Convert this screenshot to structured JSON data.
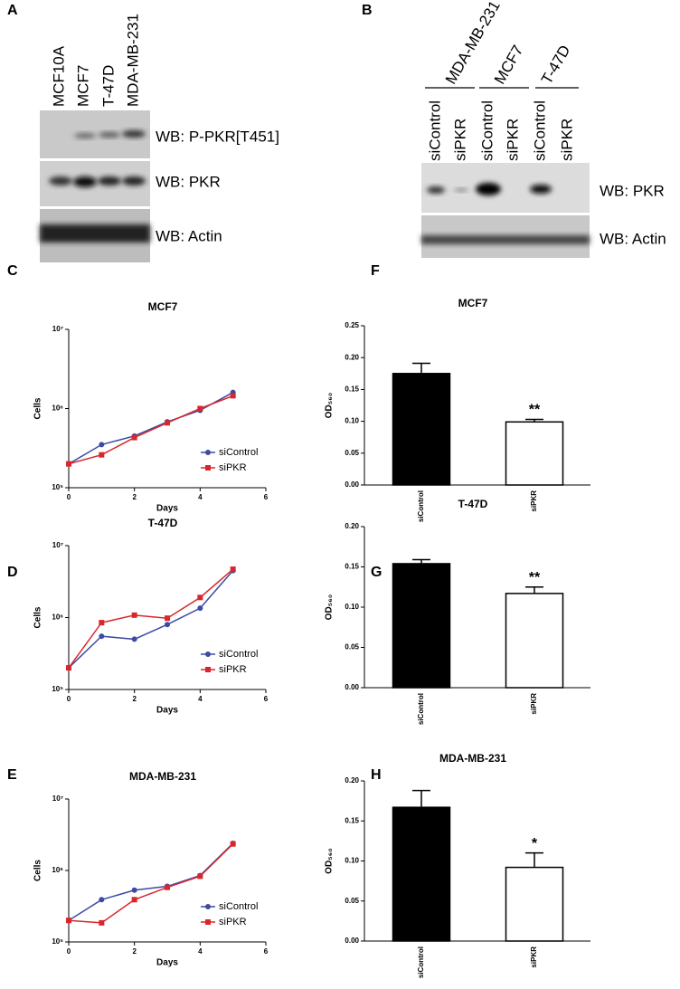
{
  "blots": [
    {
      "letter": "A",
      "lanes": [
        "MCF10A",
        "MCF7",
        "T-47D",
        "MDA-MB-231"
      ],
      "rows": [
        "WB: P-PKR[T451]",
        "WB: PKR",
        "WB: Actin"
      ]
    },
    {
      "letter": "B",
      "groups": [
        "MDA-MB-231",
        "MCF7",
        "T-47D"
      ],
      "lanes": [
        "siControl",
        "siPKR",
        "siControl",
        "siPKR",
        "siControl",
        "siPKR"
      ],
      "rows": [
        "WB: PKR",
        "WB: Actin"
      ]
    }
  ],
  "chart_data": [
    {
      "letter": "C",
      "type": "line",
      "title": "MCF7",
      "xlabel": "Days",
      "ylabel": "Cells",
      "x": [
        0,
        1,
        2,
        3,
        4,
        5
      ],
      "xlim": [
        0,
        6
      ],
      "xticks": [
        0,
        2,
        4,
        6
      ],
      "log_y": true,
      "ylim": [
        100000,
        10000000
      ],
      "yticks": [
        {
          "value": 100000,
          "label": "10⁵"
        },
        {
          "value": 1000000,
          "label": "10⁶"
        },
        {
          "value": 10000000,
          "label": "10⁷"
        }
      ],
      "legend": "lower right",
      "series": [
        {
          "name": "siControl",
          "color": "#3b4ba3",
          "values": [
            200000,
            350000,
            450000,
            680000,
            950000,
            1600000
          ]
        },
        {
          "name": "siPKR",
          "color": "#d9262b",
          "values": [
            200000,
            260000,
            430000,
            660000,
            1000000,
            1450000
          ]
        }
      ]
    },
    {
      "letter": "D",
      "type": "line",
      "title": "T-47D",
      "xlabel": "Days",
      "ylabel": "Cells",
      "x": [
        0,
        1,
        2,
        3,
        4,
        5
      ],
      "xlim": [
        0,
        6
      ],
      "xticks": [
        0,
        2,
        4,
        6
      ],
      "log_y": true,
      "ylim": [
        100000,
        10000000
      ],
      "yticks": [
        {
          "value": 100000,
          "label": "10⁵"
        },
        {
          "value": 1000000,
          "label": "10⁶"
        },
        {
          "value": 10000000,
          "label": "10⁷"
        }
      ],
      "legend": "lower right",
      "series": [
        {
          "name": "siControl",
          "color": "#3b4ba3",
          "values": [
            200000,
            550000,
            500000,
            800000,
            1350000,
            4500000
          ]
        },
        {
          "name": "siPKR",
          "color": "#d9262b",
          "values": [
            200000,
            850000,
            1080000,
            980000,
            1900000,
            4700000
          ]
        }
      ]
    },
    {
      "letter": "E",
      "type": "line",
      "title": "MDA-MB-231",
      "xlabel": "Days",
      "ylabel": "Cells",
      "x": [
        0,
        1,
        2,
        3,
        4,
        5
      ],
      "xlim": [
        0,
        6
      ],
      "xticks": [
        0,
        2,
        4,
        6
      ],
      "log_y": true,
      "ylim": [
        100000,
        10000000
      ],
      "yticks": [
        {
          "value": 100000,
          "label": "10⁵"
        },
        {
          "value": 1000000,
          "label": "10⁶"
        },
        {
          "value": 10000000,
          "label": "10⁷"
        }
      ],
      "legend": "lower right",
      "series": [
        {
          "name": "siControl",
          "color": "#3b4ba3",
          "values": [
            200000,
            390000,
            530000,
            600000,
            850000,
            2400000
          ]
        },
        {
          "name": "siPKR",
          "color": "#d9262b",
          "values": [
            200000,
            185000,
            390000,
            580000,
            830000,
            2350000
          ]
        }
      ]
    },
    {
      "letter": "F",
      "type": "bar",
      "title": "MCF7",
      "ylabel": "OD₅₆₀",
      "categories": [
        "siControl",
        "siPKR"
      ],
      "values": [
        0.175,
        0.099
      ],
      "errors": [
        0.016,
        0.004
      ],
      "colors": [
        "#000000",
        "#ffffff"
      ],
      "annotations": [
        null,
        "**"
      ],
      "ylim": [
        0,
        0.25
      ],
      "yticks": [
        {
          "value": 0,
          "label": "0.00"
        },
        0.05,
        {
          "value": 0.1,
          "label": "0.10"
        },
        0.15,
        {
          "value": 0.2,
          "label": "0.20"
        },
        0.25
      ]
    },
    {
      "letter": "G",
      "type": "bar",
      "title": "T-47D",
      "ylabel": "OD₅₆₀",
      "categories": [
        "siControl",
        "siPKR"
      ],
      "values": [
        0.154,
        0.117
      ],
      "errors": [
        0.005,
        0.008
      ],
      "colors": [
        "#000000",
        "#ffffff"
      ],
      "annotations": [
        null,
        "**"
      ],
      "ylim": [
        0,
        0.2
      ],
      "yticks": [
        {
          "value": 0,
          "label": "0.00"
        },
        0.05,
        {
          "value": 0.1,
          "label": "0.10"
        },
        0.15,
        {
          "value": 0.2,
          "label": "0.20"
        }
      ]
    },
    {
      "letter": "H",
      "type": "bar",
      "title": "MDA-MB-231",
      "ylabel": "OD₅₆₀",
      "categories": [
        "siControl",
        "siPKR"
      ],
      "values": [
        0.167,
        0.092
      ],
      "errors": [
        0.021,
        0.018
      ],
      "colors": [
        "#000000",
        "#ffffff"
      ],
      "annotations": [
        null,
        "*"
      ],
      "ylim": [
        0,
        0.2
      ],
      "yticks": [
        {
          "value": 0,
          "label": "0.00"
        },
        0.05,
        {
          "value": 0.1,
          "label": "0.10"
        },
        0.15,
        {
          "value": 0.2,
          "label": "0.20"
        }
      ]
    }
  ]
}
